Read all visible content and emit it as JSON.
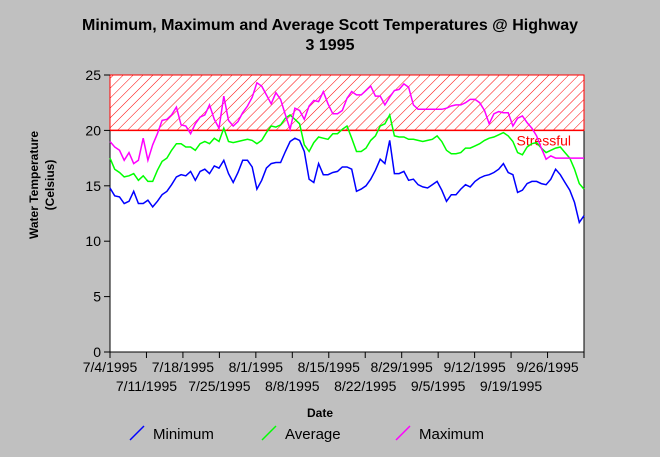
{
  "chart_data": {
    "type": "line",
    "title_line1": "Minimum, Maximum and Average Scott Temperatures @ Highway",
    "title_line2": "3 1995",
    "xlabel": "Date",
    "ylabel_line1": "Water Temperature",
    "ylabel_line2": "(Celsius)",
    "ylim": [
      0,
      25
    ],
    "yticks": [
      "0",
      "5",
      "10",
      "15",
      "20",
      "25"
    ],
    "xlim": [
      0,
      100
    ],
    "xticks_top": [
      "7/4/1995",
      "7/18/1995",
      "8/1/1995",
      "8/15/1995",
      "8/29/1995",
      "9/12/1995",
      "9/26/1995"
    ],
    "xticks_bottom": [
      "7/11/1995",
      "7/25/1995",
      "8/8/1995",
      "8/22/1995",
      "9/5/1995",
      "9/19/1995"
    ],
    "stressful": {
      "label": "Stressful",
      "from": 20,
      "to": 25,
      "color": "#ff0000"
    },
    "series": [
      {
        "name": "Minimum",
        "color": "#0000ff",
        "values": [
          14.8,
          14.1,
          14.0,
          13.4,
          13.6,
          14.5,
          13.4,
          13.4,
          13.7,
          13.1,
          13.6,
          14.2,
          14.5,
          15.1,
          15.8,
          16.0,
          15.9,
          16.3,
          15.5,
          16.3,
          16.5,
          16.1,
          16.8,
          16.6,
          17.3,
          16.1,
          15.3,
          16.2,
          17.3,
          17.3,
          16.7,
          14.7,
          15.5,
          16.6,
          17.0,
          17.1,
          17.1,
          18.1,
          19.0,
          19.3,
          19.1,
          18.1,
          15.6,
          15.3,
          17.0,
          16.0,
          16.0,
          16.2,
          16.3,
          16.7,
          16.7,
          16.5,
          14.5,
          14.7,
          15.0,
          15.6,
          16.4,
          17.4,
          17.0,
          19.1,
          16.1,
          16.1,
          16.3,
          15.5,
          15.6,
          15.1,
          14.9,
          14.8,
          15.1,
          15.4,
          14.6,
          13.6,
          14.2,
          14.2,
          14.7,
          15.1,
          14.9,
          15.4,
          15.7,
          15.9,
          16.0,
          16.2,
          16.5,
          17.0,
          16.2,
          16.0,
          14.4,
          14.6,
          15.2,
          15.4,
          15.4,
          15.2,
          15.1,
          15.6,
          16.5,
          16.0,
          15.3,
          14.6,
          13.5,
          11.7,
          12.3
        ]
      },
      {
        "name": "Average",
        "color": "#00ff00",
        "values": [
          17.5,
          16.5,
          16.2,
          15.8,
          15.9,
          16.1,
          15.5,
          15.9,
          15.4,
          15.4,
          16.4,
          17.2,
          17.5,
          18.2,
          18.8,
          18.8,
          18.5,
          18.5,
          18.2,
          18.8,
          19.0,
          18.8,
          19.3,
          19.0,
          20.2,
          19.0,
          18.9,
          19.0,
          19.1,
          19.2,
          19.1,
          18.8,
          19.1,
          19.8,
          20.4,
          20.3,
          20.5,
          21.1,
          21.4,
          21.0,
          20.6,
          18.7,
          18.1,
          18.9,
          19.4,
          19.3,
          19.2,
          19.7,
          19.7,
          20.1,
          20.4,
          19.3,
          18.1,
          18.1,
          18.4,
          19.1,
          19.5,
          20.4,
          20.6,
          21.4,
          19.5,
          19.4,
          19.4,
          19.2,
          19.2,
          19.1,
          19.0,
          19.1,
          19.2,
          19.5,
          19.0,
          18.2,
          17.9,
          17.9,
          18.0,
          18.4,
          18.4,
          18.6,
          18.8,
          19.1,
          19.3,
          19.4,
          19.6,
          19.8,
          19.5,
          19.0,
          18.0,
          17.8,
          18.5,
          18.8,
          18.9,
          18.4,
          18.0,
          18.2,
          18.4,
          18.5,
          18.0,
          17.5,
          16.5,
          15.2,
          14.7
        ]
      },
      {
        "name": "Maximum",
        "color": "#ff00ff",
        "values": [
          19.0,
          18.5,
          18.2,
          17.3,
          18.0,
          17.0,
          17.3,
          19.3,
          17.3,
          18.7,
          19.7,
          20.9,
          21.0,
          21.4,
          22.1,
          20.5,
          20.4,
          19.7,
          20.6,
          21.2,
          21.4,
          22.3,
          21.0,
          20.2,
          23.1,
          20.9,
          20.4,
          20.8,
          21.6,
          22.2,
          23.0,
          24.3,
          24.0,
          23.2,
          22.4,
          23.4,
          22.8,
          21.4,
          20.1,
          22.0,
          21.8,
          21.0,
          22.2,
          22.7,
          22.6,
          23.5,
          22.4,
          21.5,
          21.5,
          21.8,
          22.9,
          23.5,
          23.2,
          23.2,
          23.6,
          24.0,
          23.1,
          23.1,
          22.3,
          23.0,
          23.6,
          23.7,
          24.2,
          23.9,
          22.3,
          21.9,
          21.9,
          21.9,
          21.9,
          21.9,
          21.9,
          22.0,
          22.2,
          22.3,
          22.3,
          22.5,
          22.8,
          22.8,
          22.5,
          21.8,
          20.6,
          21.5,
          21.7,
          21.6,
          21.6,
          20.4,
          21.1,
          21.3,
          20.7,
          20.2,
          19.5,
          18.4,
          17.4,
          17.7,
          17.5,
          17.5,
          17.5,
          17.5,
          17.5,
          17.5,
          17.5
        ]
      }
    ],
    "legend": {
      "placement": "bottom"
    }
  }
}
